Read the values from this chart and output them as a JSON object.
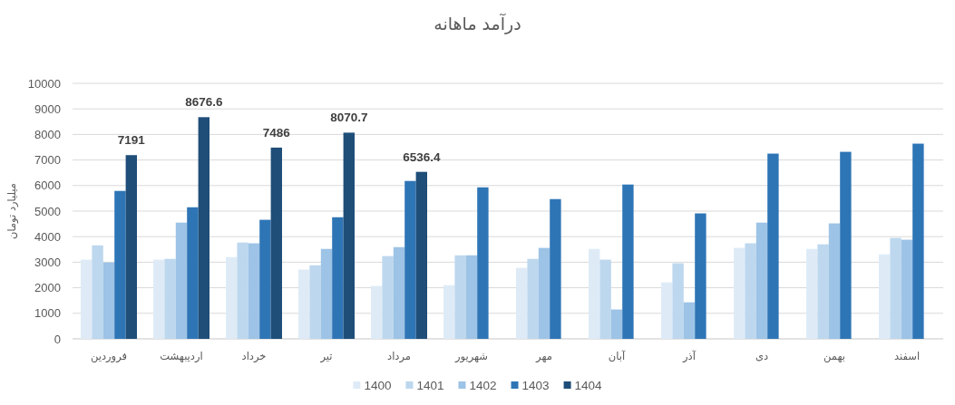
{
  "chart_data": {
    "type": "bar",
    "title": "درآمد ماهانه",
    "ylabel": "میلیارد تومان",
    "categories": [
      "فروردین",
      "اردیبهشت",
      "خرداد",
      "تیر",
      "مرداد",
      "شهریور",
      "مهر",
      "آبان",
      "آذر",
      "دی",
      "بهمن",
      "اسفند"
    ],
    "series": [
      {
        "name": "1400",
        "color": "#deebf7",
        "values": [
          3100,
          3100,
          3200,
          2710,
          2070,
          2100,
          2780,
          3520,
          2210,
          3560,
          3520,
          3310
        ]
      },
      {
        "name": "1401",
        "color": "#bdd7ee",
        "values": [
          3660,
          3130,
          3770,
          2880,
          3240,
          3270,
          3130,
          3100,
          2960,
          3740,
          3700,
          3950
        ]
      },
      {
        "name": "1402",
        "color": "#9dc3e6",
        "values": [
          2990,
          4550,
          3740,
          3520,
          3590,
          3270,
          3560,
          1150,
          1430,
          4550,
          4520,
          3880
        ]
      },
      {
        "name": "1403",
        "color": "#2e75b6",
        "values": [
          5790,
          5150,
          4660,
          4760,
          6180,
          5930,
          5470,
          6040,
          4910,
          7250,
          7320,
          7640
        ]
      },
      {
        "name": "1404",
        "color": "#1f4e79",
        "values": [
          7191,
          8676.6,
          7486,
          8070.7,
          6536.4,
          null,
          null,
          null,
          null,
          null,
          null,
          null
        ],
        "value_labels": [
          "7191",
          "8676.6",
          "7486",
          "8070.7",
          "6536.4",
          null,
          null,
          null,
          null,
          null,
          null,
          null
        ]
      }
    ],
    "ylim": [
      0,
      10000
    ],
    "yticks": [
      0,
      1000,
      2000,
      3000,
      4000,
      5000,
      6000,
      7000,
      8000,
      9000,
      10000
    ],
    "grid": "y",
    "legend": "bottom"
  }
}
